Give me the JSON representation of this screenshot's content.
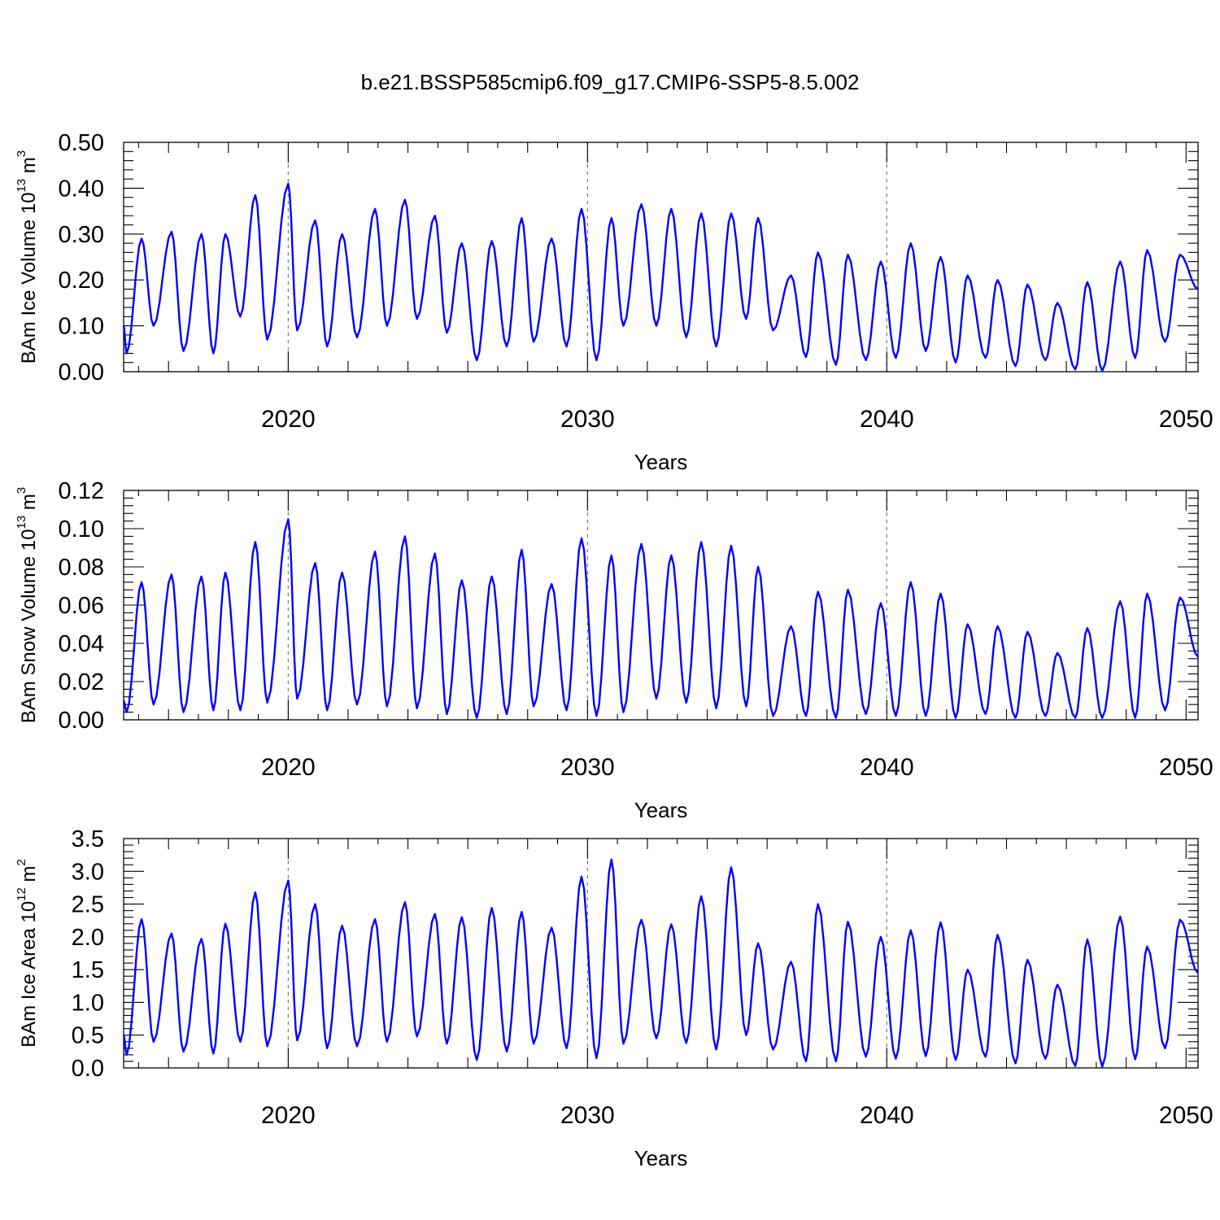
{
  "figure_title": "b.e21.BSSP585cmip6.f09_g17.CMIP6-SSP5-8.5.002",
  "colors": {
    "series": "#0000ff",
    "axis": "#000000",
    "ref_line": "#777777"
  },
  "chart_data": [
    {
      "type": "line",
      "ylabel": {
        "text": "BAm Ice Volume 10",
        "exp": "13",
        "unit": " m",
        "unit_exp": "3"
      },
      "xlabel": "Years",
      "ylim": [
        0,
        0.5
      ],
      "yticks": [
        "0.00",
        "0.10",
        "0.20",
        "0.30",
        "0.40",
        "0.50"
      ],
      "ytick_values": [
        0,
        0.1,
        0.2,
        0.3,
        0.4,
        0.5
      ],
      "xlim": [
        2014.5,
        2050.4
      ],
      "xticks": [
        "2020",
        "2030",
        "2040",
        "2050"
      ],
      "xtick_values": [
        2020,
        2030,
        2040,
        2050
      ],
      "ref_lines_x": [
        2020,
        2030,
        2040
      ],
      "series": [
        {
          "color": "#0000ff",
          "min_x": [
            2014.6,
            2015.5,
            2016.5,
            2017.5,
            2018.4,
            2019.3,
            2020.3,
            2021.3,
            2022.3,
            2023.3,
            2024.3,
            2025.3,
            2026.3,
            2027.3,
            2028.2,
            2029.3,
            2030.3,
            2031.2,
            2032.3,
            2033.3,
            2034.3,
            2035.3,
            2036.2,
            2037.3,
            2038.3,
            2039.3,
            2040.3,
            2041.3,
            2042.3,
            2043.3,
            2044.3,
            2045.3,
            2046.3,
            2047.2,
            2048.3,
            2049.3
          ],
          "min_y": [
            0.04,
            0.1,
            0.045,
            0.04,
            0.12,
            0.07,
            0.09,
            0.055,
            0.075,
            0.1,
            0.115,
            0.085,
            0.025,
            0.055,
            0.065,
            0.055,
            0.025,
            0.1,
            0.1,
            0.075,
            0.055,
            0.115,
            0.09,
            0.032,
            0.015,
            0.025,
            0.03,
            0.045,
            0.02,
            0.03,
            0.012,
            0.025,
            0.005,
            0.002,
            0.03,
            0.065
          ],
          "max_x": [
            2015.1,
            2016.1,
            2017.1,
            2017.9,
            2018.9,
            2020.0,
            2020.9,
            2021.8,
            2022.9,
            2023.9,
            2024.9,
            2025.8,
            2026.8,
            2027.8,
            2028.8,
            2029.8,
            2030.8,
            2031.8,
            2032.8,
            2033.8,
            2034.8,
            2035.7,
            2036.8,
            2037.7,
            2038.7,
            2039.8,
            2040.8,
            2041.8,
            2042.7,
            2043.7,
            2044.7,
            2045.7,
            2046.7,
            2047.8,
            2048.7,
            2049.8
          ],
          "max_y": [
            0.29,
            0.305,
            0.3,
            0.3,
            0.385,
            0.41,
            0.33,
            0.3,
            0.355,
            0.375,
            0.34,
            0.28,
            0.285,
            0.335,
            0.29,
            0.355,
            0.335,
            0.365,
            0.355,
            0.345,
            0.345,
            0.335,
            0.21,
            0.26,
            0.255,
            0.24,
            0.28,
            0.25,
            0.21,
            0.2,
            0.19,
            0.15,
            0.195,
            0.24,
            0.265,
            0.255
          ],
          "start": [
            2014.5,
            0.1
          ],
          "end": [
            2050.4,
            0.18
          ]
        }
      ]
    },
    {
      "type": "line",
      "ylabel": {
        "text": "BAm Snow Volume 10",
        "exp": "13",
        "unit": " m",
        "unit_exp": "3"
      },
      "xlabel": "Years",
      "ylim": [
        0,
        0.12
      ],
      "yticks": [
        "0.00",
        "0.02",
        "0.04",
        "0.06",
        "0.08",
        "0.10",
        "0.12"
      ],
      "ytick_values": [
        0,
        0.02,
        0.04,
        0.06,
        0.08,
        0.1,
        0.12
      ],
      "xlim": [
        2014.5,
        2050.4
      ],
      "xticks": [
        "2020",
        "2030",
        "2040",
        "2050"
      ],
      "xtick_values": [
        2020,
        2030,
        2040,
        2050
      ],
      "ref_lines_x": [
        2020,
        2030,
        2040
      ],
      "series": [
        {
          "color": "#0000ff",
          "min_x": [
            2014.6,
            2015.5,
            2016.5,
            2017.5,
            2018.4,
            2019.3,
            2020.3,
            2021.3,
            2022.3,
            2023.3,
            2024.3,
            2025.3,
            2026.3,
            2027.3,
            2028.2,
            2029.3,
            2030.3,
            2031.2,
            2032.3,
            2033.3,
            2034.3,
            2035.3,
            2036.2,
            2037.3,
            2038.3,
            2039.3,
            2040.3,
            2041.3,
            2042.3,
            2043.3,
            2044.3,
            2045.3,
            2046.3,
            2047.2,
            2048.3,
            2049.3
          ],
          "min_y": [
            0.004,
            0.008,
            0.004,
            0.005,
            0.005,
            0.009,
            0.011,
            0.005,
            0.008,
            0.007,
            0.006,
            0.003,
            0.001,
            0.003,
            0.007,
            0.005,
            0.002,
            0.004,
            0.011,
            0.009,
            0.006,
            0.007,
            0.002,
            0.002,
            0.001,
            0.003,
            0.002,
            0.002,
            0.001,
            0.003,
            0.001,
            0.002,
            0.001,
            0.001,
            0.001,
            0.005
          ],
          "max_x": [
            2015.1,
            2016.1,
            2017.1,
            2017.9,
            2018.9,
            2020.0,
            2020.9,
            2021.8,
            2022.9,
            2023.9,
            2024.9,
            2025.8,
            2026.8,
            2027.8,
            2028.8,
            2029.8,
            2030.8,
            2031.8,
            2032.8,
            2033.8,
            2034.8,
            2035.7,
            2036.8,
            2037.7,
            2038.7,
            2039.8,
            2040.8,
            2041.8,
            2042.7,
            2043.7,
            2044.7,
            2045.7,
            2046.7,
            2047.8,
            2048.7,
            2049.8
          ],
          "max_y": [
            0.072,
            0.076,
            0.075,
            0.077,
            0.093,
            0.105,
            0.082,
            0.077,
            0.088,
            0.096,
            0.087,
            0.073,
            0.075,
            0.089,
            0.071,
            0.095,
            0.086,
            0.092,
            0.086,
            0.093,
            0.091,
            0.08,
            0.049,
            0.067,
            0.068,
            0.061,
            0.072,
            0.066,
            0.05,
            0.049,
            0.046,
            0.035,
            0.048,
            0.062,
            0.066,
            0.064
          ],
          "start": [
            2014.5,
            0.01
          ],
          "end": [
            2050.4,
            0.033
          ]
        }
      ]
    },
    {
      "type": "line",
      "ylabel": {
        "text": "BAm Ice Area 10",
        "exp": "12",
        "unit": " m",
        "unit_exp": "2"
      },
      "xlabel": "Years",
      "ylim": [
        0,
        3.5
      ],
      "yticks": [
        "0.0",
        "0.5",
        "1.0",
        "1.5",
        "2.0",
        "2.5",
        "3.0",
        "3.5"
      ],
      "ytick_values": [
        0,
        0.5,
        1,
        1.5,
        2,
        2.5,
        3,
        3.5
      ],
      "xlim": [
        2014.5,
        2050.4
      ],
      "xticks": [
        "2020",
        "2030",
        "2040",
        "2050"
      ],
      "xtick_values": [
        2020,
        2030,
        2040,
        2050
      ],
      "ref_lines_x": [
        2020,
        2030,
        2040
      ],
      "series": [
        {
          "color": "#0000ff",
          "min_x": [
            2014.6,
            2015.5,
            2016.5,
            2017.5,
            2018.4,
            2019.3,
            2020.3,
            2021.3,
            2022.3,
            2023.3,
            2024.3,
            2025.3,
            2026.3,
            2027.3,
            2028.2,
            2029.3,
            2030.3,
            2031.2,
            2032.3,
            2033.3,
            2034.3,
            2035.3,
            2036.2,
            2037.3,
            2038.3,
            2039.3,
            2040.3,
            2041.3,
            2042.3,
            2043.3,
            2044.3,
            2045.3,
            2046.3,
            2047.2,
            2048.3,
            2049.3
          ],
          "min_y": [
            0.2,
            0.4,
            0.25,
            0.22,
            0.4,
            0.33,
            0.42,
            0.3,
            0.33,
            0.4,
            0.48,
            0.37,
            0.12,
            0.25,
            0.37,
            0.3,
            0.15,
            0.37,
            0.45,
            0.38,
            0.28,
            0.5,
            0.28,
            0.1,
            0.1,
            0.17,
            0.14,
            0.18,
            0.12,
            0.17,
            0.07,
            0.14,
            0.03,
            0.02,
            0.13,
            0.3
          ],
          "max_x": [
            2015.1,
            2016.1,
            2017.1,
            2017.9,
            2018.9,
            2020.0,
            2020.9,
            2021.8,
            2022.9,
            2023.9,
            2024.9,
            2025.8,
            2026.8,
            2027.8,
            2028.8,
            2029.8,
            2030.8,
            2031.8,
            2032.8,
            2033.8,
            2034.8,
            2035.7,
            2036.8,
            2037.7,
            2038.7,
            2039.8,
            2040.8,
            2041.8,
            2042.7,
            2043.7,
            2044.7,
            2045.7,
            2046.7,
            2047.8,
            2048.7,
            2049.8
          ],
          "max_y": [
            2.27,
            2.05,
            1.97,
            2.2,
            2.68,
            2.86,
            2.5,
            2.17,
            2.27,
            2.53,
            2.35,
            2.3,
            2.44,
            2.38,
            2.14,
            2.92,
            3.18,
            2.26,
            2.19,
            2.62,
            3.06,
            1.9,
            1.62,
            2.5,
            2.23,
            2.0,
            2.1,
            2.22,
            1.5,
            2.03,
            1.65,
            1.27,
            1.96,
            2.31,
            1.85,
            2.26
          ],
          "start": [
            2014.5,
            0.5
          ],
          "end": [
            2050.4,
            1.45
          ]
        }
      ]
    }
  ]
}
